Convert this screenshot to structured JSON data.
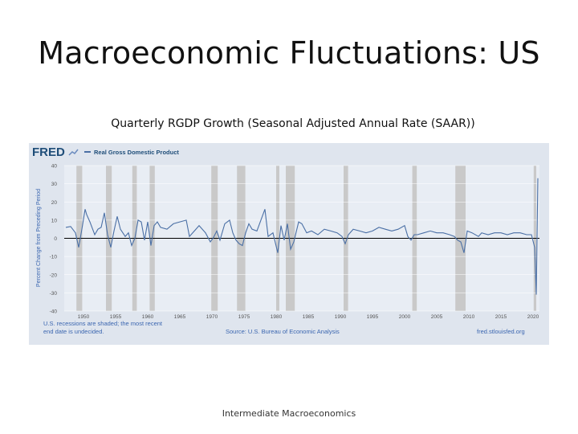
{
  "slide": {
    "title": "Macroeconomic Fluctuations: US",
    "subtitle": "Quarterly RGDP Growth (Seasonal Adjusted Annual Rate (SAAR))",
    "footer": "Intermediate Macroeconomics"
  },
  "colors": {
    "panel_bg": "#dfe5ee",
    "plot_bg": "#e8edf4",
    "recession": "#c9c9c9",
    "line": "#4a6fa5",
    "fred_blue": "#1f4e79",
    "text_blue": "#3b66b0"
  },
  "fred": {
    "logo": "FRED",
    "legend_label": "Real Gross Domestic Product",
    "note_line1": "U.S. recessions are shaded; the most recent",
    "note_line2": "end date is undecided.",
    "source": "Source: U.S. Bureau of Economic Analysis",
    "site": "fred.stlouisfed.org"
  },
  "chart_data": {
    "type": "line",
    "ylabel": "Percent Change from Preceding Period",
    "ylim": [
      -40,
      40
    ],
    "yticks": [
      40,
      30,
      20,
      10,
      0,
      -10,
      -20,
      -30,
      -40
    ],
    "xlim": [
      1947,
      2021
    ],
    "xticks": [
      1950,
      1955,
      1960,
      1965,
      1970,
      1975,
      1980,
      1985,
      1990,
      1995,
      2000,
      2005,
      2010,
      2015,
      2020
    ],
    "recessions": [
      [
        1948.9,
        1949.8
      ],
      [
        1953.5,
        1954.4
      ],
      [
        1957.6,
        1958.3
      ],
      [
        1960.3,
        1961.1
      ],
      [
        1969.9,
        1970.9
      ],
      [
        1973.9,
        1975.2
      ],
      [
        1980.0,
        1980.5
      ],
      [
        1981.5,
        1982.9
      ],
      [
        1990.5,
        1991.2
      ],
      [
        2001.2,
        2001.9
      ],
      [
        2007.9,
        2009.5
      ],
      [
        2020.1,
        2020.5
      ]
    ],
    "series": [
      {
        "x": [
          1947.25,
          1948,
          1948.75,
          1949.25,
          1949.75,
          1950.25,
          1950.5,
          1951,
          1951.75,
          1952.25,
          1952.75,
          1953.25,
          1953.75,
          1954.25,
          1954.75,
          1955.25,
          1955.75,
          1956.5,
          1957,
          1957.5,
          1958,
          1958.5,
          1959,
          1959.5,
          1960,
          1960.5,
          1961,
          1961.5,
          1962,
          1963,
          1964,
          1965,
          1966,
          1966.5,
          1967,
          1968,
          1969,
          1969.75,
          1970.25,
          1970.75,
          1971.25,
          1972,
          1972.75,
          1973.25,
          1973.75,
          1974.25,
          1974.75,
          1975.25,
          1975.75,
          1976.25,
          1977,
          1978.25,
          1978.75,
          1979.5,
          1980.25,
          1980.75,
          1981.25,
          1981.75,
          1982.25,
          1982.75,
          1983.5,
          1984,
          1984.75,
          1985.5,
          1986.5,
          1987.5,
          1988.5,
          1989.5,
          1990.25,
          1990.75,
          1991.25,
          1992,
          1993,
          1994,
          1995,
          1996,
          1997,
          1998,
          1999,
          2000,
          2000.5,
          2001,
          2001.5,
          2002,
          2003,
          2004,
          2005,
          2006,
          2007,
          2007.75,
          2008.25,
          2008.75,
          2009.25,
          2009.75,
          2010.5,
          2011.5,
          2012,
          2013,
          2014,
          2015,
          2016,
          2017,
          2018,
          2019,
          2019.75,
          2020.25,
          2020.5,
          2020.75
        ],
        "values": [
          6,
          6.5,
          3,
          -5,
          5,
          16,
          13,
          9,
          2,
          5,
          6,
          14,
          2,
          -5,
          4,
          12,
          5,
          1,
          3,
          -4,
          0,
          10,
          9,
          -1,
          9,
          -4,
          7,
          9,
          6,
          5,
          8,
          9,
          10,
          1,
          3,
          7,
          3,
          -2,
          0.5,
          4,
          -1,
          8,
          10,
          3,
          -1,
          -3,
          -4,
          3,
          8,
          5,
          4,
          16,
          1,
          3,
          -8,
          7,
          -1,
          8,
          -6,
          -2,
          9,
          8,
          3,
          4,
          2,
          5,
          4,
          3,
          1,
          -3,
          2,
          5,
          4,
          3,
          4,
          6,
          5,
          4,
          5,
          7,
          1,
          -1,
          2,
          2,
          3,
          4,
          3,
          3,
          2,
          1,
          -1,
          -2,
          -8,
          4,
          3,
          1,
          3,
          2,
          3,
          3,
          2,
          3,
          3,
          2,
          2,
          -5,
          -31,
          33
        ]
      }
    ]
  }
}
